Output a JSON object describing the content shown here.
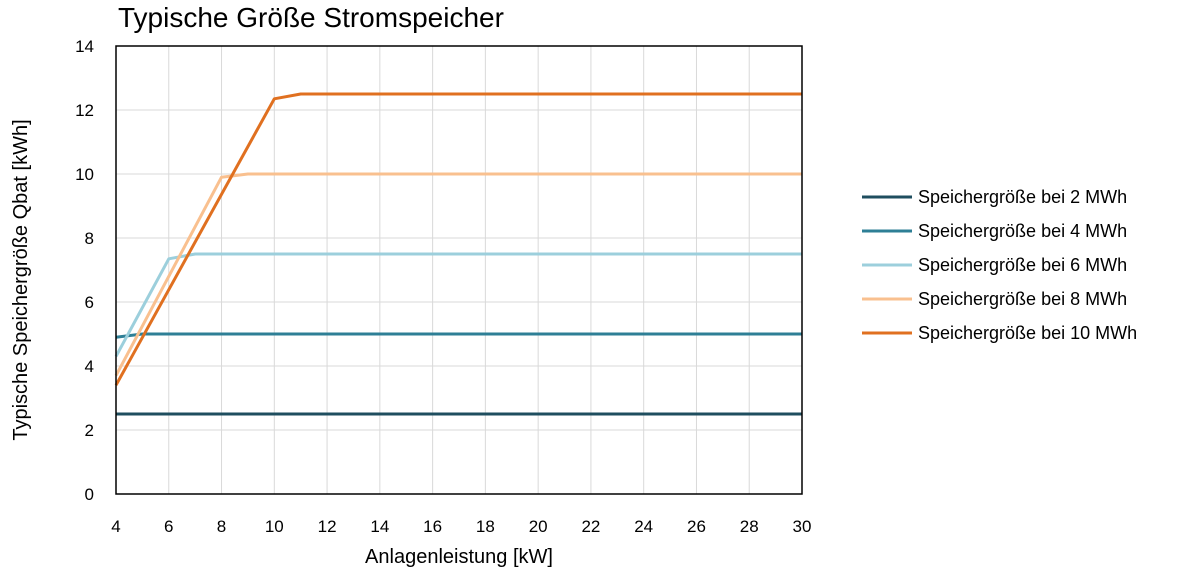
{
  "chart_data": {
    "type": "line",
    "title": "Typische Größe Stromspeicher",
    "xlabel": "Anlagenleistung [kW]",
    "ylabel": "Typische Speichergröße Qbat [kWh]",
    "xlim": [
      4,
      30
    ],
    "ylim": [
      0,
      14
    ],
    "x_ticks": [
      4,
      6,
      8,
      10,
      12,
      14,
      16,
      18,
      20,
      22,
      24,
      26,
      28,
      30
    ],
    "y_ticks": [
      0,
      2,
      4,
      6,
      8,
      10,
      12,
      14
    ],
    "grid": true,
    "legend_position": "right",
    "series": [
      {
        "name": "Speichergröße bei 2 MWh",
        "color": "#1f4e5f",
        "points": [
          [
            4,
            2.5
          ],
          [
            30,
            2.5
          ]
        ]
      },
      {
        "name": "Speichergröße bei 4 MWh",
        "color": "#2e7f96",
        "points": [
          [
            4,
            4.9
          ],
          [
            5,
            5.0
          ],
          [
            30,
            5.0
          ]
        ]
      },
      {
        "name": "Speichergröße bei 6 MWh",
        "color": "#9ccfdc",
        "points": [
          [
            4,
            4.3
          ],
          [
            6,
            7.35
          ],
          [
            7,
            7.5
          ],
          [
            30,
            7.5
          ]
        ]
      },
      {
        "name": "Speichergröße bei 8 MWh",
        "color": "#f9c08f",
        "points": [
          [
            4,
            3.7
          ],
          [
            8,
            9.9
          ],
          [
            9,
            10.0
          ],
          [
            30,
            10.0
          ]
        ]
      },
      {
        "name": "Speichergröße bei 10 MWh",
        "color": "#e07020",
        "points": [
          [
            4,
            3.4
          ],
          [
            10,
            12.35
          ],
          [
            11,
            12.5
          ],
          [
            30,
            12.5
          ]
        ]
      }
    ]
  }
}
